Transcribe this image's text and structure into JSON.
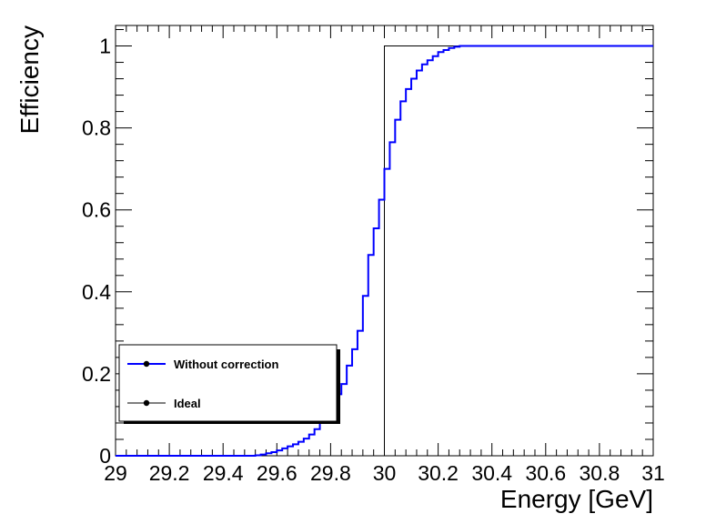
{
  "chart_data": {
    "type": "line",
    "xlabel": "Energy [GeV]",
    "ylabel": "Efficiency",
    "xlim": [
      29,
      31
    ],
    "ylim": [
      0,
      1.05
    ],
    "x_ticks": [
      "29",
      "29.2",
      "29.4",
      "29.6",
      "29.8",
      "30",
      "30.2",
      "30.4",
      "30.6",
      "30.8",
      "31"
    ],
    "y_ticks": [
      "0",
      "0.2",
      "0.4",
      "0.6",
      "0.8",
      "1"
    ],
    "bin_width": 0.02,
    "legend_position": "bottom-left",
    "grid": false,
    "series": [
      {
        "name": "Without correction",
        "color": "#0000ff",
        "style": "step",
        "x": [
          29.5,
          29.52,
          29.54,
          29.56,
          29.58,
          29.6,
          29.62,
          29.64,
          29.66,
          29.68,
          29.7,
          29.72,
          29.74,
          29.76,
          29.78,
          29.8,
          29.82,
          29.84,
          29.86,
          29.88,
          29.9,
          29.92,
          29.94,
          29.96,
          29.98,
          30.0,
          30.02,
          30.04,
          30.06,
          30.08,
          30.1,
          30.12,
          30.14,
          30.16,
          30.18,
          30.2,
          30.22,
          30.24,
          30.26,
          30.28,
          30.3,
          30.32,
          30.34,
          30.36,
          30.38,
          30.4,
          30.42,
          30.44
        ],
        "y": [
          0.0,
          0.001,
          0.003,
          0.006,
          0.009,
          0.013,
          0.018,
          0.023,
          0.028,
          0.034,
          0.042,
          0.052,
          0.065,
          0.08,
          0.097,
          0.12,
          0.15,
          0.175,
          0.22,
          0.26,
          0.305,
          0.39,
          0.49,
          0.555,
          0.625,
          0.7,
          0.765,
          0.82,
          0.865,
          0.895,
          0.92,
          0.94,
          0.955,
          0.965,
          0.975,
          0.985,
          0.99,
          0.995,
          0.998,
          1.0,
          1.0,
          1.0,
          1.0,
          1.0,
          1.0,
          1.0,
          1.0,
          1.0
        ]
      },
      {
        "name": "Ideal",
        "color": "#000000",
        "style": "step",
        "x": [
          29,
          30,
          30,
          31
        ],
        "y": [
          0,
          0,
          1,
          1
        ]
      }
    ]
  }
}
